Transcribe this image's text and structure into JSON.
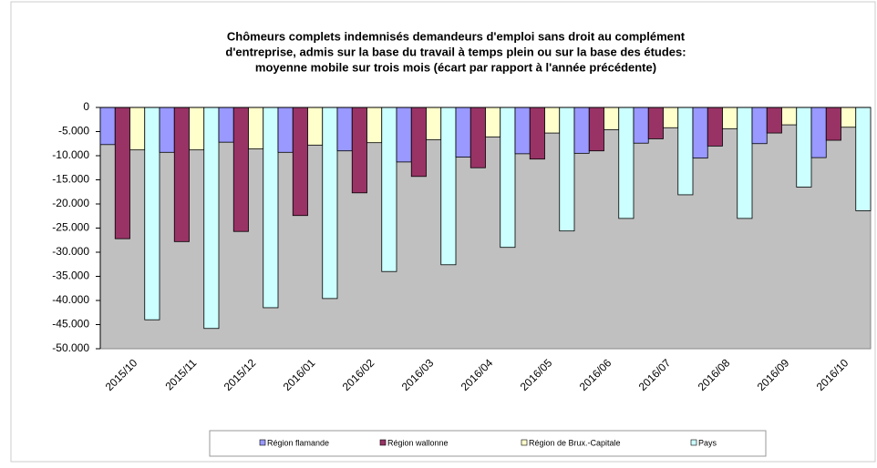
{
  "chart_data": {
    "type": "bar",
    "title": [
      "Chômeurs complets indemnisés demandeurs d'emploi sans droit au complément",
      "d'entreprise, admis sur la base du travail à temps plein ou sur la base des études:",
      "moyenne mobile sur trois mois (écart par rapport à l'année précédente)"
    ],
    "categories": [
      "2015/10",
      "2015/11",
      "2015/12",
      "2016/01",
      "2016/02",
      "2016/03",
      "2016/04",
      "2016/05",
      "2016/06",
      "2016/07",
      "2016/08",
      "2016/09",
      "2016/10"
    ],
    "series": [
      {
        "name": "Région flamande",
        "color": "#9999ff",
        "values": [
          -7700,
          -9300,
          -7200,
          -9300,
          -9000,
          -11300,
          -10300,
          -9600,
          -9500,
          -7400,
          -10500,
          -7500,
          -10400
        ]
      },
      {
        "name": "Région wallonne",
        "color": "#993366",
        "values": [
          -27200,
          -27800,
          -25700,
          -22400,
          -17700,
          -14300,
          -12500,
          -10700,
          -9000,
          -6500,
          -8000,
          -5300,
          -6800
        ]
      },
      {
        "name": "Région de Brux.-Capitale",
        "color": "#ffffcc",
        "values": [
          -8800,
          -8800,
          -8600,
          -7800,
          -7300,
          -6700,
          -6100,
          -5300,
          -4600,
          -4200,
          -4400,
          -3600,
          -4100
        ]
      },
      {
        "name": "Pays",
        "color": "#ccffff",
        "values": [
          -44000,
          -45800,
          -41500,
          -39600,
          -34000,
          -32600,
          -29000,
          -25600,
          -23000,
          -18100,
          -23000,
          -16500,
          -21400
        ]
      }
    ],
    "ylim": [
      -50000,
      0
    ],
    "yticks": [
      0,
      {
        "value": -5000,
        "label": "-5.000"
      },
      {
        "value": -10000,
        "label": "-10.000"
      },
      {
        "value": -15000,
        "label": "-15.000"
      },
      {
        "value": -20000,
        "label": "-20.000"
      },
      {
        "value": -25000,
        "label": "-25.000"
      },
      {
        "value": -30000,
        "label": "-30.000"
      },
      {
        "value": -35000,
        "label": "-35.000"
      },
      {
        "value": -40000,
        "label": "-40.000"
      },
      {
        "value": -45000,
        "label": "-45.000"
      },
      {
        "value": -50000,
        "label": "-50.000"
      }
    ],
    "plot_background": "#c0c0c0"
  }
}
